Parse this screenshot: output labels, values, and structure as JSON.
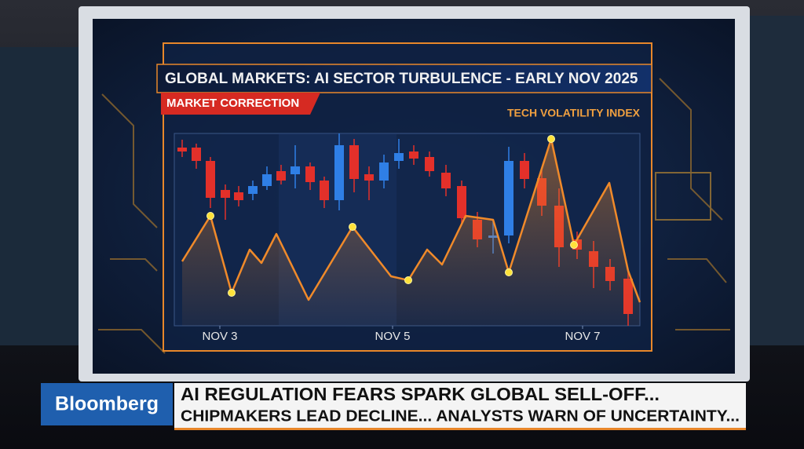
{
  "chart_data": {
    "type": "candlestick",
    "title": "GLOBAL MARKETS: AI SECTOR TURBULENCE - EARLY NOV 2025",
    "subtitle": "MARKET CORRECTION",
    "x": [
      10,
      28,
      46,
      65,
      82,
      100,
      118,
      136,
      154,
      173,
      191,
      210,
      229,
      248,
      267,
      286,
      305,
      325,
      346,
      366,
      386,
      406,
      426,
      446,
      468,
      490,
      513,
      534,
      555,
      578
    ],
    "open": [
      227,
      227,
      210,
      173,
      170,
      168,
      178,
      197,
      193,
      203,
      185,
      160,
      230,
      193,
      185,
      210,
      222,
      215,
      195,
      178,
      135,
      112,
      115,
      210,
      188,
      153,
      110,
      95,
      75,
      60
    ],
    "high": [
      237,
      232,
      215,
      180,
      178,
      185,
      203,
      205,
      230,
      208,
      190,
      245,
      238,
      203,
      218,
      238,
      230,
      222,
      205,
      185,
      145,
      135,
      228,
      220,
      200,
      175,
      120,
      108,
      85,
      70
    ],
    "low": [
      215,
      200,
      150,
      135,
      152,
      160,
      173,
      180,
      175,
      173,
      150,
      147,
      170,
      160,
      175,
      200,
      205,
      190,
      165,
      130,
      100,
      92,
      105,
      175,
      140,
      75,
      85,
      48,
      45,
      0
    ],
    "close": [
      222,
      210,
      163,
      163,
      160,
      178,
      193,
      185,
      203,
      183,
      160,
      230,
      187,
      185,
      208,
      220,
      213,
      197,
      175,
      137,
      110,
      115,
      210,
      187,
      153,
      100,
      97,
      75,
      57,
      15
    ],
    "up_color": "#2f7fe6",
    "down_color": "#e3302a",
    "overlay": {
      "type": "line",
      "name": "TECH VOLATILITY INDEX",
      "color": "#f08a2a",
      "x": [
        10,
        46,
        73,
        96,
        111,
        130,
        171,
        227,
        276,
        298,
        322,
        341,
        371,
        406,
        426,
        480,
        509,
        554,
        578,
        593
      ],
      "values": [
        82,
        140,
        42,
        97,
        80,
        117,
        33,
        126,
        63,
        58,
        97,
        78,
        140,
        135,
        68,
        238,
        103,
        182,
        70,
        30
      ],
      "highlight_points": [
        1,
        2,
        7,
        9,
        14,
        15,
        16
      ]
    },
    "xlim": [
      0,
      593
    ],
    "ylim": [
      0,
      245
    ],
    "xticks": [
      {
        "value": 58,
        "label": "NOV 3"
      },
      {
        "value": 278,
        "label": "NOV 5"
      },
      {
        "value": 520,
        "label": "NOV 7"
      }
    ]
  },
  "lower_third": {
    "brand": "Bloomberg",
    "headline": "AI REGULATION FEARS SPARK GLOBAL SELL-OFF...",
    "subline": "CHIPMAKERS LEAD DECLINE... ANALYSTS WARN OF UNCERTAINTY..."
  }
}
